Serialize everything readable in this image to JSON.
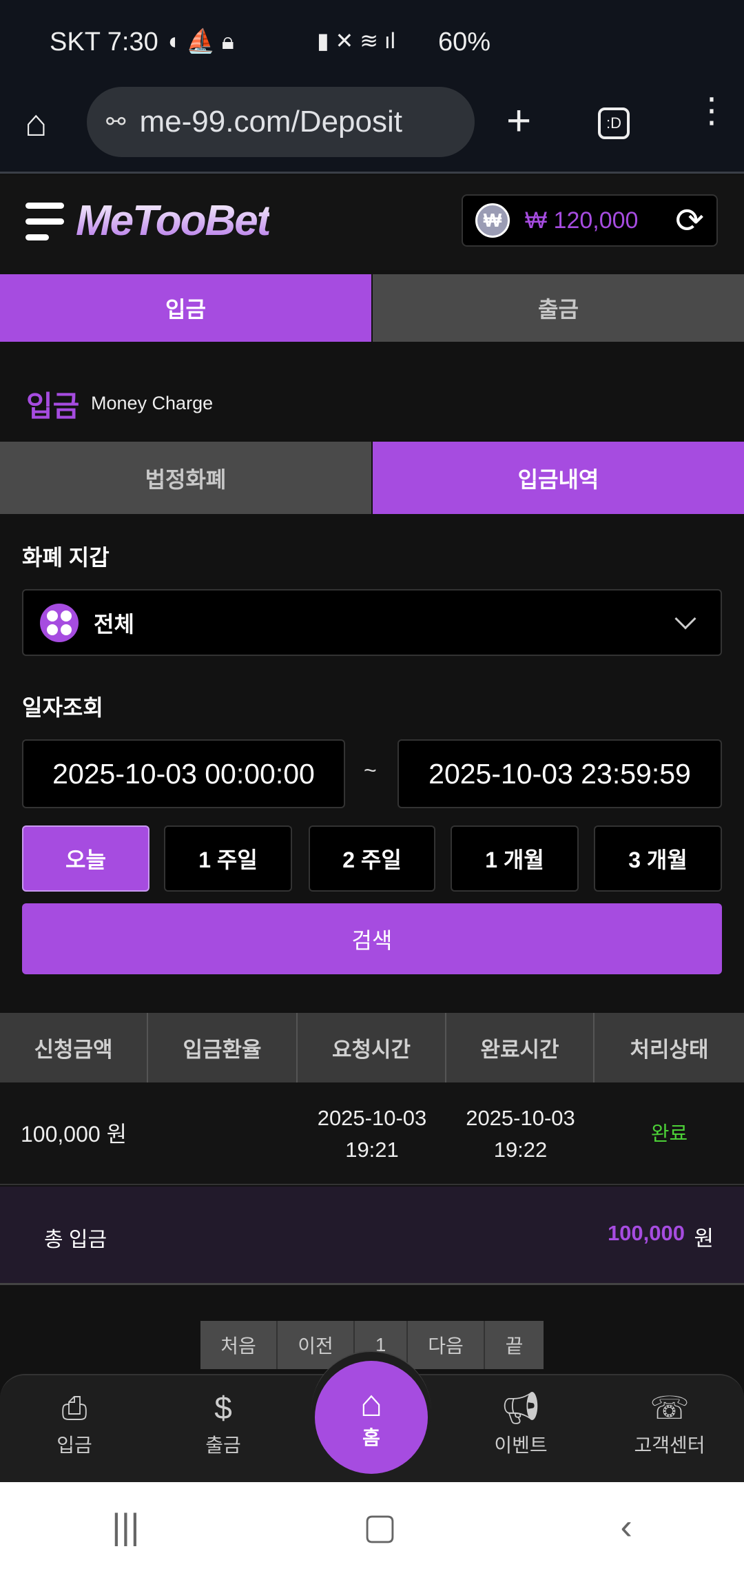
{
  "status_bar": {
    "carrier_time": "SKT 7:30",
    "battery": "60%",
    "left_icons": [
      "chat-icon",
      "boat-icon",
      "lock-icon"
    ],
    "right_icons": [
      "battery-saver-icon",
      "mute-icon",
      "wifi-icon",
      "signal-icon",
      "charging-icon"
    ]
  },
  "browser": {
    "url": "me-99.com/Deposit",
    "tab_label": ":D"
  },
  "header": {
    "logo": "MeTooBet",
    "currency_symbol": "₩",
    "balance": "₩ 120,000"
  },
  "main_tabs": [
    {
      "label": "입금",
      "active": true
    },
    {
      "label": "출금",
      "active": false
    }
  ],
  "section": {
    "title": "입금",
    "subtitle": "Money Charge"
  },
  "sub_tabs": [
    {
      "label": "법정화폐",
      "active": false
    },
    {
      "label": "입금내역",
      "active": true
    }
  ],
  "wallet": {
    "label": "화폐 지갑",
    "selected": "전체"
  },
  "date_filter": {
    "label": "일자조회",
    "from": "2025-10-03 00:00:00",
    "separator": "~",
    "to": "2025-10-03 23:59:59"
  },
  "periods": [
    {
      "label": "오늘",
      "active": true
    },
    {
      "label": "1 주일"
    },
    {
      "label": "2 주일"
    },
    {
      "label": "1 개월"
    },
    {
      "label": "3 개월"
    }
  ],
  "search_label": "검색",
  "table": {
    "headers": [
      "신청금액",
      "입금환율",
      "요청시간",
      "완료시간",
      "처리상태"
    ],
    "rows": [
      {
        "amount": "100,000 원",
        "rate": "",
        "requested_date": "2025-10-03",
        "requested_time": "19:21",
        "completed_date": "2025-10-03",
        "completed_time": "19:22",
        "status": "완료"
      }
    ]
  },
  "total": {
    "label": "총 입금",
    "amount": "100,000",
    "unit": "원"
  },
  "pagination": {
    "first": "처음",
    "prev": "이전",
    "current": "1",
    "next": "다음",
    "last": "끝"
  },
  "bottom_nav": [
    {
      "label": "입금",
      "icon": "deposit-icon"
    },
    {
      "label": "출금",
      "icon": "withdraw-icon"
    },
    {
      "label": "홈",
      "icon": "home-icon"
    },
    {
      "label": "이벤트",
      "icon": "megaphone-icon"
    },
    {
      "label": "고객센터",
      "icon": "support-24-icon"
    }
  ],
  "colors": {
    "accent": "#a64ce0",
    "status_complete": "#4cd137",
    "background": "#121212"
  }
}
